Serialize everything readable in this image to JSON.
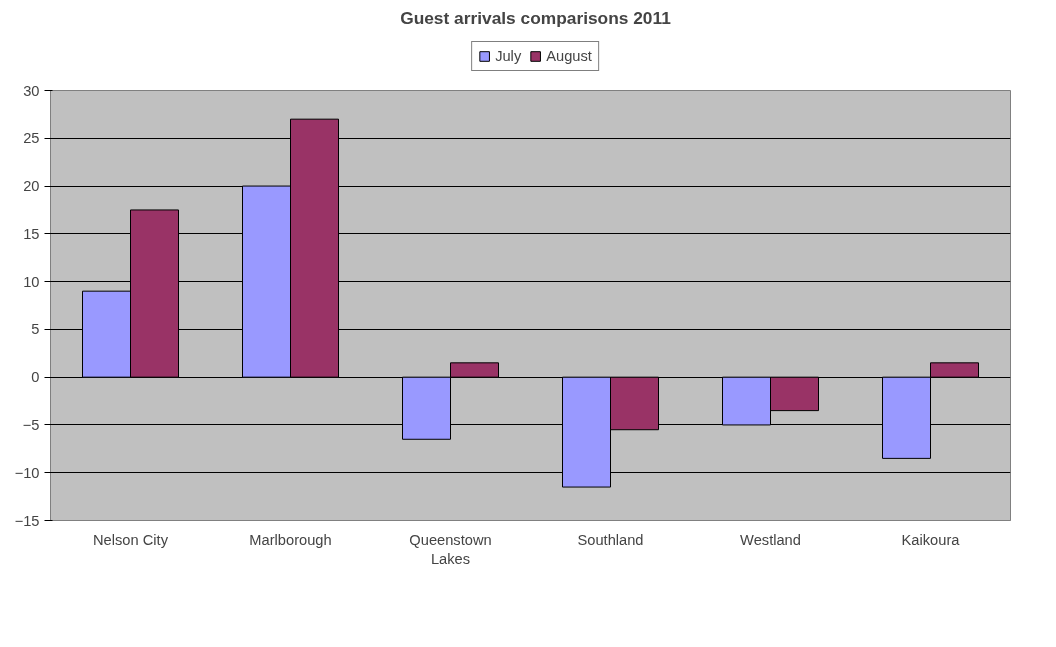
{
  "chart_data": {
    "type": "bar",
    "title": "Guest arrivals comparisons 2011",
    "categories": [
      "Nelson City",
      "Marlborough",
      "Queenstown Lakes",
      "Southland",
      "Westland",
      "Kaikoura"
    ],
    "series": [
      {
        "name": "July",
        "color": "#9999ff",
        "values": [
          9,
          20,
          -6.5,
          -11.5,
          -5,
          -8.5
        ]
      },
      {
        "name": "August",
        "color": "#993366",
        "values": [
          17.5,
          27,
          1.5,
          -5.5,
          -3.5,
          1.5
        ]
      }
    ],
    "ylim": [
      -15,
      30
    ],
    "yticks": [
      -15,
      -10,
      -5,
      0,
      5,
      10,
      15,
      20,
      25,
      30
    ],
    "grid": "y",
    "legend": "top"
  }
}
